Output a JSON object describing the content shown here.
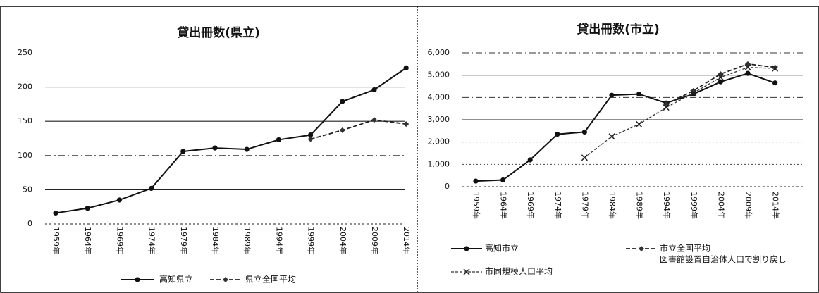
{
  "chart_data": [
    {
      "type": "line",
      "title": "貸出冊数(県立)",
      "categories": [
        "1959年",
        "1964年",
        "1969年",
        "1974年",
        "1979年",
        "1984年",
        "1989年",
        "1994年",
        "1999年",
        "2004年",
        "2009年",
        "2014年"
      ],
      "yticks": [
        "0",
        "50",
        "100",
        "150",
        "200",
        "250"
      ],
      "ylim": [
        0,
        250
      ],
      "grid": true,
      "legend_position": "bottom",
      "series": [
        {
          "name": "高知県立",
          "style": "solid-circle",
          "values": [
            16,
            23,
            35,
            52,
            106,
            111,
            109,
            123,
            130,
            179,
            196,
            228
          ]
        },
        {
          "name": "県立全国平均",
          "style": "dash-diamond",
          "values": [
            null,
            null,
            null,
            null,
            null,
            null,
            null,
            null,
            124,
            137,
            152,
            146
          ]
        }
      ]
    },
    {
      "type": "line",
      "title": "貸出冊数(市立)",
      "categories": [
        "1959年",
        "1964年",
        "1969年",
        "1974年",
        "1979年",
        "1984年",
        "1989年",
        "1994年",
        "1999年",
        "2004年",
        "2009年",
        "2014年"
      ],
      "yticks": [
        "0",
        "1,000",
        "2,000",
        "3,000",
        "4,000",
        "5,000",
        "6,000"
      ],
      "ylim": [
        0,
        6000
      ],
      "grid": true,
      "legend_position": "bottom",
      "series": [
        {
          "name": "高知市立",
          "style": "solid-circle",
          "values": [
            250,
            300,
            1200,
            2350,
            2450,
            4100,
            4150,
            3750,
            4150,
            4700,
            5080,
            4650
          ]
        },
        {
          "name": "市立全国平均",
          "note": "図書館設置自治体人口で割り戻し",
          "style": "dash-diamond",
          "values": [
            null,
            null,
            null,
            null,
            null,
            null,
            null,
            3700,
            4300,
            5050,
            5500,
            5350
          ]
        },
        {
          "name": "市同規模人口平均",
          "style": "cross",
          "values": [
            null,
            null,
            null,
            null,
            1300,
            2250,
            2800,
            3550,
            4200,
            4900,
            5350,
            5300
          ]
        }
      ]
    }
  ]
}
